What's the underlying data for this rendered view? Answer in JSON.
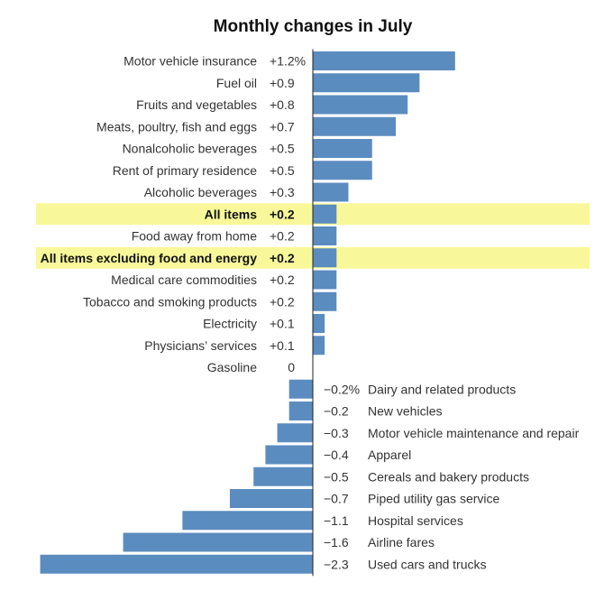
{
  "chart_data": {
    "type": "bar",
    "orientation": "horizontal",
    "title": "Monthly changes in July",
    "xlabel": "",
    "ylabel": "",
    "grid": false,
    "xlim": [
      -2.3,
      1.2
    ],
    "bar_color": "#5b8cbf",
    "highlight_color": "#f8f89a",
    "categories": [
      "Motor vehicle insurance",
      "Fuel oil",
      "Fruits and vegetables",
      "Meats, poultry, fish and eggs",
      "Nonalcoholic beverages",
      "Rent of primary residence",
      "Alcoholic beverages",
      "All items",
      "Food away from home",
      "All items excluding food and energy",
      "Medical care commodities",
      "Tobacco and smoking products",
      "Electricity",
      "Physicians’ services",
      "Gasoline",
      "Dairy and related products",
      "New vehicles",
      "Motor vehicle maintenance and repair",
      "Apparel",
      "Cereals and bakery products",
      "Piped utility gas service",
      "Hospital services",
      "Airline fares",
      "Used cars and trucks"
    ],
    "values": [
      1.2,
      0.9,
      0.8,
      0.7,
      0.5,
      0.5,
      0.3,
      0.2,
      0.2,
      0.2,
      0.2,
      0.2,
      0.1,
      0.1,
      0,
      -0.2,
      -0.2,
      -0.3,
      -0.4,
      -0.5,
      -0.7,
      -1.1,
      -1.6,
      -2.3
    ],
    "value_labels": [
      "+1.2%",
      "+0.9",
      "+0.8",
      "+0.7",
      "+0.5",
      "+0.5",
      "+0.3",
      "+0.2",
      "+0.2",
      "+0.2",
      "+0.2",
      "+0.2",
      "+0.1",
      "+0.1",
      "0",
      "−0.2%",
      "−0.2",
      "−0.3",
      "−0.4",
      "−0.5",
      "−0.7",
      "−1.1",
      "−1.6",
      "−2.3"
    ],
    "highlighted": [
      "All items",
      "All items excluding food and energy"
    ]
  }
}
